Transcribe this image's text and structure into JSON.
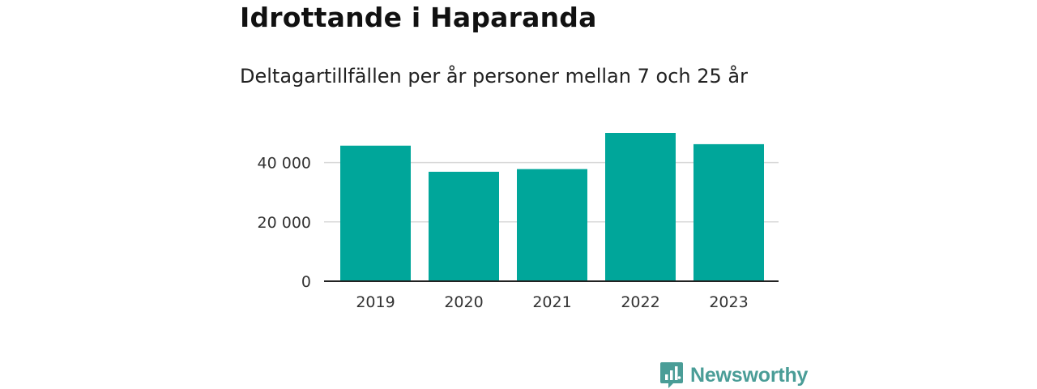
{
  "header": {
    "title": "Idrottande i Haparanda",
    "subtitle": "Deltagartillfällen per år personer mellan 7 och 25 år"
  },
  "chart_data": {
    "type": "bar",
    "categories": [
      "2019",
      "2020",
      "2021",
      "2022",
      "2023"
    ],
    "values": [
      45700,
      36900,
      37800,
      50000,
      46200
    ],
    "y_ticks": [
      0,
      20000,
      40000
    ],
    "y_tick_labels": [
      "0",
      "20 000",
      "40 000"
    ],
    "ylim": [
      0,
      50000
    ],
    "grid": true,
    "bar_color": "#00a69a"
  },
  "branding": {
    "logo_text": "Newsworthy",
    "logo_icon": "newsworthy-chart-bubble-icon",
    "logo_color": "#4a9d97"
  }
}
